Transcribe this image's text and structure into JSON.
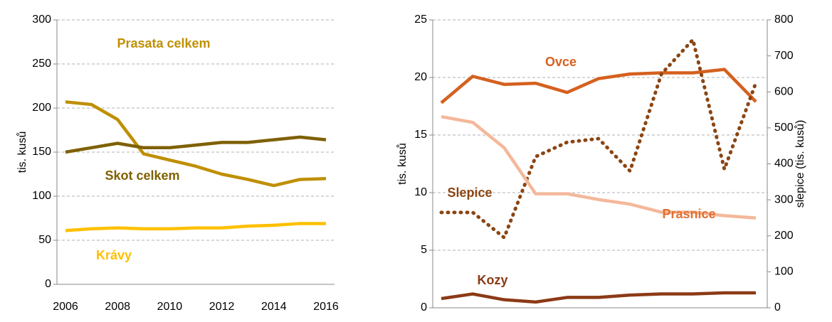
{
  "chart_data": [
    {
      "type": "line",
      "y_label": "tis. kusů",
      "x": [
        2006,
        2007,
        2008,
        2009,
        2010,
        2011,
        2012,
        2013,
        2014,
        2015,
        2016
      ],
      "xlim": [
        2006,
        2016
      ],
      "xticks": [
        2006,
        2008,
        2010,
        2012,
        2014,
        2016
      ],
      "ylim": [
        0,
        300
      ],
      "yticks": [
        0,
        50,
        100,
        150,
        200,
        250,
        300
      ],
      "grid": true,
      "series": [
        {
          "name": "Prasata celkem",
          "color": "#bf8f00",
          "values": [
            207,
            204,
            187,
            148,
            141,
            134,
            125,
            119,
            112,
            119,
            120
          ]
        },
        {
          "name": "Skot celkem",
          "color": "#7f6000",
          "values": [
            150,
            155,
            160,
            155,
            155,
            158,
            161,
            161,
            164,
            167,
            164
          ]
        },
        {
          "name": "Krávy",
          "color": "#ffc000",
          "values": [
            61,
            63,
            64,
            63,
            63,
            64,
            64,
            66,
            67,
            69,
            69
          ]
        }
      ]
    },
    {
      "type": "line",
      "y_label": "tis. kusů",
      "y2_label": "slepice (tis. kusů)",
      "x": [
        2006,
        2007,
        2008,
        2009,
        2010,
        2011,
        2012,
        2013,
        2014,
        2015,
        2016
      ],
      "xlim": [
        2006,
        2016
      ],
      "xticks": [
        2006,
        2008,
        2010,
        2012,
        2014,
        2016
      ],
      "ylim": [
        0,
        25
      ],
      "yticks": [
        0,
        5,
        10,
        15,
        20,
        25
      ],
      "y2lim": [
        0,
        800
      ],
      "y2ticks": [
        0,
        100,
        200,
        300,
        400,
        500,
        600,
        700,
        800
      ],
      "grid": true,
      "series": [
        {
          "name": "Ovce",
          "color": "#d5601f",
          "values": [
            17.8,
            20.1,
            19.4,
            19.5,
            18.7,
            19.9,
            20.3,
            20.4,
            20.4,
            20.7,
            17.9
          ]
        },
        {
          "name": "Slepice",
          "color": "#8b4513",
          "dashed": true,
          "axis": "y2",
          "values": [
            265,
            265,
            195,
            420,
            460,
            470,
            380,
            650,
            745,
            385,
            625
          ]
        },
        {
          "name": "Prasnice",
          "color": "#f4b89a",
          "label_color": "#e07030",
          "values": [
            16.6,
            16.1,
            13.9,
            9.9,
            9.9,
            9.4,
            9.0,
            8.3,
            8.3,
            8.0,
            7.8
          ]
        },
        {
          "name": "Kozy",
          "color": "#8b3a16",
          "values": [
            0.8,
            1.2,
            0.7,
            0.5,
            0.9,
            0.9,
            1.1,
            1.2,
            1.2,
            1.3,
            1.3
          ]
        }
      ]
    }
  ]
}
